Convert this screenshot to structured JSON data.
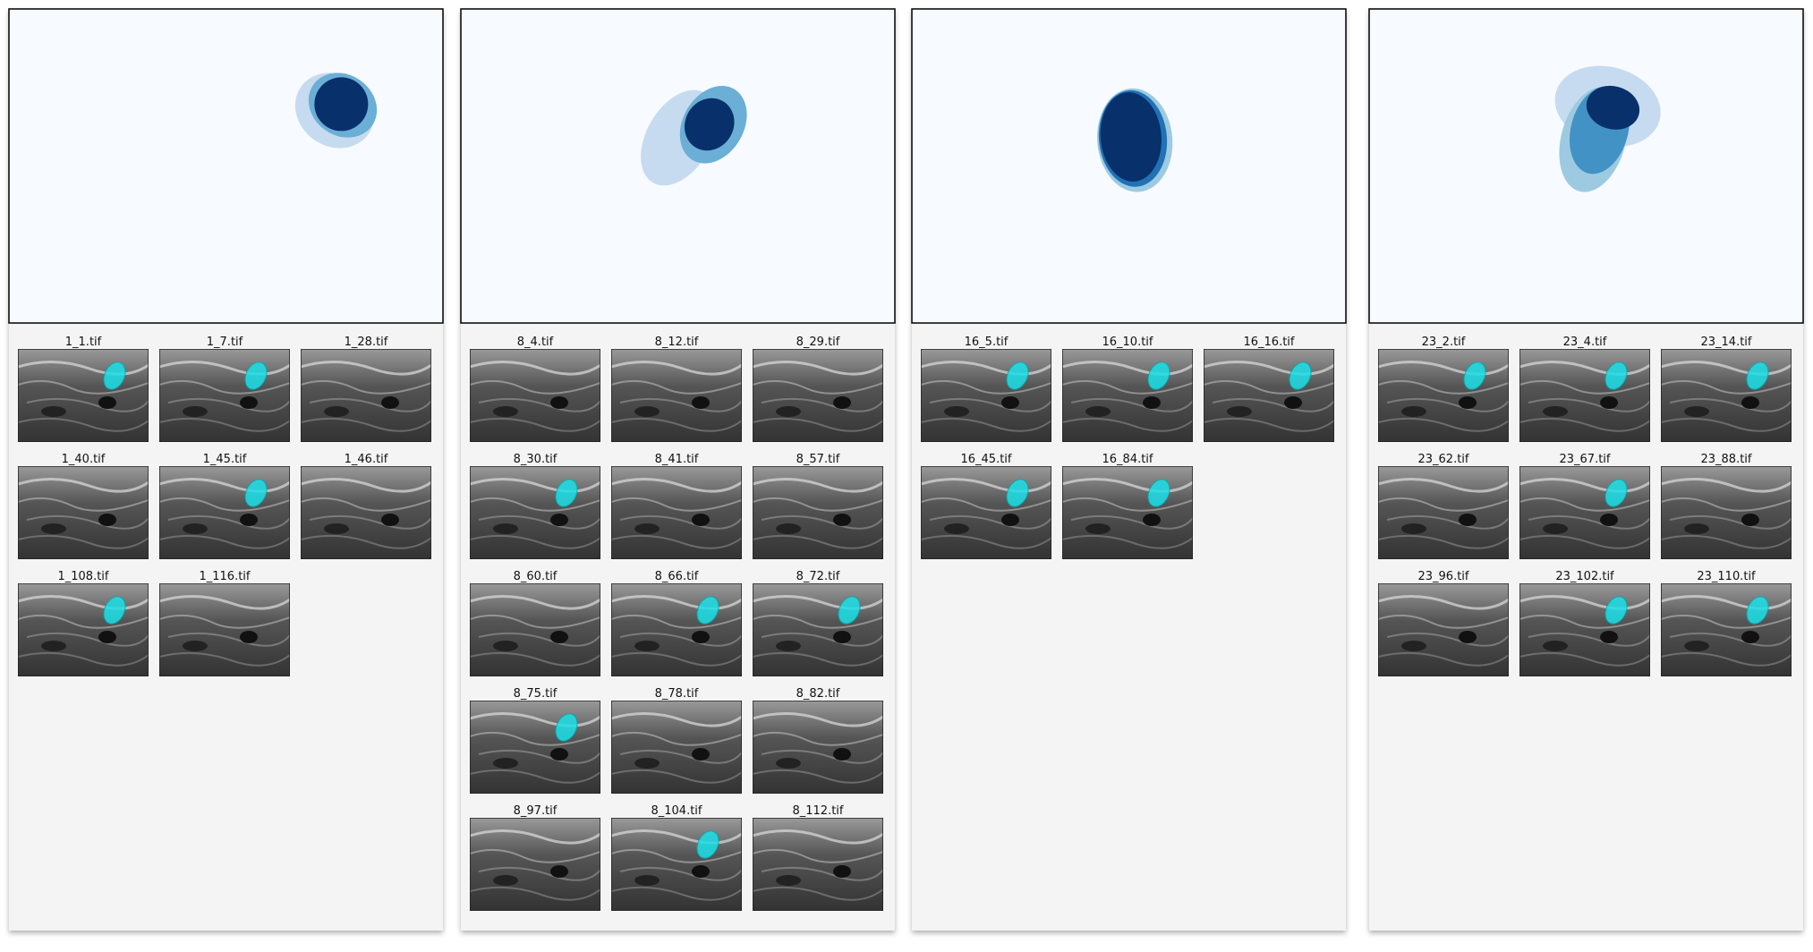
{
  "panels": [
    {
      "images": [
        "1_1.tif",
        "1_7.tif",
        "1_28.tif",
        "1_40.tif",
        "1_45.tif",
        "1_46.tif",
        "1_108.tif",
        "1_116.tif"
      ]
    },
    {
      "images": [
        "8_4.tif",
        "8_12.tif",
        "8_29.tif",
        "8_30.tif",
        "8_41.tif",
        "8_57.tif",
        "8_60.tif",
        "8_66.tif",
        "8_72.tif",
        "8_75.tif",
        "8_78.tif",
        "8_82.tif",
        "8_97.tif",
        "8_104.tif",
        "8_112.tif"
      ]
    },
    {
      "images": [
        "16_5.tif",
        "16_10.tif",
        "16_16.tif",
        "16_45.tif",
        "16_84.tif"
      ]
    },
    {
      "images": [
        "23_2.tif",
        "23_4.tif",
        "23_14.tif",
        "23_62.tif",
        "23_67.tif",
        "23_88.tif",
        "23_96.tif",
        "23_102.tif",
        "23_110.tif"
      ]
    }
  ]
}
